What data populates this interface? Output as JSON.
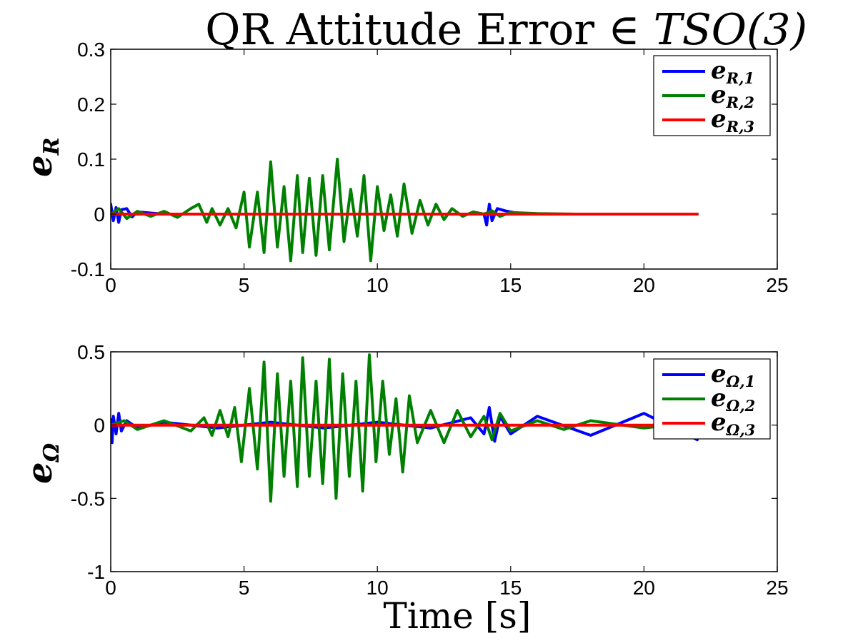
{
  "figure": {
    "title_prefix": "QR Attitude Error ∈ ",
    "title_math": "TSO(3)",
    "xlabel": "Time [s]"
  },
  "chart_data": [
    {
      "type": "line",
      "ylabel_main": "e",
      "ylabel_sub": "R",
      "xlim": [
        0,
        25
      ],
      "ylim": [
        -0.1,
        0.3
      ],
      "xticks": [
        0,
        5,
        10,
        15,
        20,
        25
      ],
      "yticks": [
        -0.1,
        0,
        0.1,
        0.2,
        0.3
      ],
      "xtick_labels": [
        "0",
        "5",
        "10",
        "15",
        "20",
        "25"
      ],
      "ytick_labels": [
        "-0.1",
        "0",
        "0.1",
        "0.2",
        "0.3"
      ],
      "grid": false,
      "legend_placement": "top-right",
      "series": [
        {
          "name_main": "e",
          "name_sub": "R,1",
          "color": "#0000ff",
          "x": [
            0,
            0.1,
            0.2,
            0.3,
            0.4,
            0.6,
            0.8,
            1.0,
            1.5,
            2.0,
            3.0,
            5.0,
            10.0,
            13.5,
            14.0,
            14.1,
            14.2,
            14.3,
            14.5,
            14.8,
            15.2,
            16.0,
            22.0
          ],
          "y": [
            0.018,
            -0.012,
            0.012,
            -0.015,
            0.008,
            0.01,
            -0.005,
            0.004,
            0.002,
            0.0,
            0.0,
            0.0,
            0.0,
            0.0,
            0.0,
            -0.02,
            0.018,
            -0.012,
            0.01,
            0.006,
            0.002,
            0.0,
            0.0
          ]
        },
        {
          "name_main": "e",
          "name_sub": "R,2",
          "color": "#008000",
          "x": [
            0,
            0.3,
            0.6,
            1.0,
            1.5,
            2.0,
            2.5,
            3.0,
            3.3,
            3.6,
            3.8,
            4.1,
            4.4,
            4.7,
            5.0,
            5.2,
            5.5,
            5.75,
            6.0,
            6.25,
            6.5,
            6.75,
            7.0,
            7.2,
            7.45,
            7.7,
            7.95,
            8.2,
            8.5,
            8.75,
            9.0,
            9.25,
            9.5,
            9.75,
            10.0,
            10.25,
            10.5,
            10.75,
            11.0,
            11.3,
            11.6,
            11.9,
            12.2,
            12.5,
            12.8,
            13.2,
            13.6,
            14.0,
            14.3,
            14.6,
            15.0,
            16.0,
            17.5,
            22.0
          ],
          "y": [
            0.0,
            0.01,
            -0.008,
            0.005,
            -0.004,
            0.005,
            -0.006,
            0.01,
            0.018,
            -0.015,
            0.01,
            -0.02,
            0.01,
            -0.025,
            0.04,
            -0.06,
            0.04,
            -0.07,
            0.095,
            -0.06,
            0.05,
            -0.085,
            0.07,
            -0.07,
            0.065,
            -0.075,
            0.07,
            -0.065,
            0.1,
            -0.05,
            0.045,
            -0.04,
            0.07,
            -0.085,
            0.05,
            -0.03,
            0.035,
            -0.04,
            0.055,
            -0.035,
            0.025,
            -0.02,
            0.018,
            -0.01,
            0.01,
            -0.004,
            0.004,
            0.0,
            0.006,
            -0.004,
            0.003,
            0.001,
            0.0,
            0.0
          ]
        },
        {
          "name_main": "e",
          "name_sub": "R,3",
          "color": "#ff0000",
          "x": [
            0,
            22.0
          ],
          "y": [
            0.0,
            0.0
          ]
        }
      ]
    },
    {
      "type": "line",
      "ylabel_main": "e",
      "ylabel_sub": "Ω",
      "xlim": [
        0,
        25
      ],
      "ylim": [
        -1,
        0.5
      ],
      "xticks": [
        0,
        5,
        10,
        15,
        20,
        25
      ],
      "yticks": [
        -1,
        -0.5,
        0,
        0.5
      ],
      "xtick_labels": [
        "0",
        "5",
        "10",
        "15",
        "20",
        "25"
      ],
      "ytick_labels": [
        "-1",
        "-0.5",
        "0",
        "0.5"
      ],
      "grid": false,
      "legend_placement": "top-right",
      "series": [
        {
          "name_main": "e",
          "name_sub": "Ω,1",
          "color": "#0000ff",
          "x": [
            0,
            0.05,
            0.1,
            0.2,
            0.3,
            0.4,
            0.6,
            1.0,
            2.0,
            4.0,
            6.0,
            8.0,
            10.0,
            12.0,
            13.5,
            14.0,
            14.2,
            14.4,
            14.6,
            15.0,
            16.0,
            18.0,
            20.0,
            22.0
          ],
          "y": [
            0.04,
            -0.12,
            0.06,
            -0.06,
            0.08,
            -0.04,
            0.03,
            -0.02,
            0.02,
            -0.02,
            0.02,
            -0.02,
            0.02,
            -0.02,
            0.05,
            -0.06,
            0.12,
            -0.11,
            0.06,
            -0.06,
            0.06,
            -0.07,
            0.08,
            -0.1
          ]
        },
        {
          "name_main": "e",
          "name_sub": "Ω,2",
          "color": "#008000",
          "x": [
            0,
            0.5,
            1.0,
            2.0,
            3.0,
            3.5,
            3.8,
            4.1,
            4.4,
            4.65,
            4.9,
            5.2,
            5.5,
            5.75,
            6.0,
            6.25,
            6.5,
            6.75,
            7.0,
            7.2,
            7.45,
            7.7,
            7.95,
            8.2,
            8.45,
            8.7,
            8.95,
            9.2,
            9.45,
            9.7,
            9.95,
            10.2,
            10.45,
            10.7,
            10.95,
            11.2,
            11.5,
            12.0,
            12.5,
            13.0,
            13.5,
            14.0,
            14.3,
            14.6,
            15.0,
            16.0,
            17.0,
            18.0,
            20.0,
            22.0
          ],
          "y": [
            0.0,
            0.03,
            -0.03,
            0.03,
            -0.04,
            0.05,
            -0.07,
            0.1,
            -0.08,
            0.12,
            -0.25,
            0.25,
            -0.3,
            0.43,
            -0.52,
            0.35,
            -0.35,
            0.3,
            -0.42,
            0.46,
            -0.35,
            0.3,
            -0.4,
            0.45,
            -0.5,
            0.35,
            -0.35,
            0.3,
            -0.45,
            0.48,
            -0.25,
            0.3,
            -0.2,
            0.18,
            -0.32,
            0.2,
            -0.12,
            0.1,
            -0.12,
            0.1,
            -0.08,
            0.06,
            -0.1,
            0.08,
            -0.04,
            0.03,
            -0.03,
            0.03,
            -0.02,
            0.02
          ]
        },
        {
          "name_main": "e",
          "name_sub": "Ω,3",
          "color": "#ff0000",
          "x": [
            0,
            22.0
          ],
          "y": [
            0.0,
            0.0
          ]
        }
      ]
    }
  ]
}
